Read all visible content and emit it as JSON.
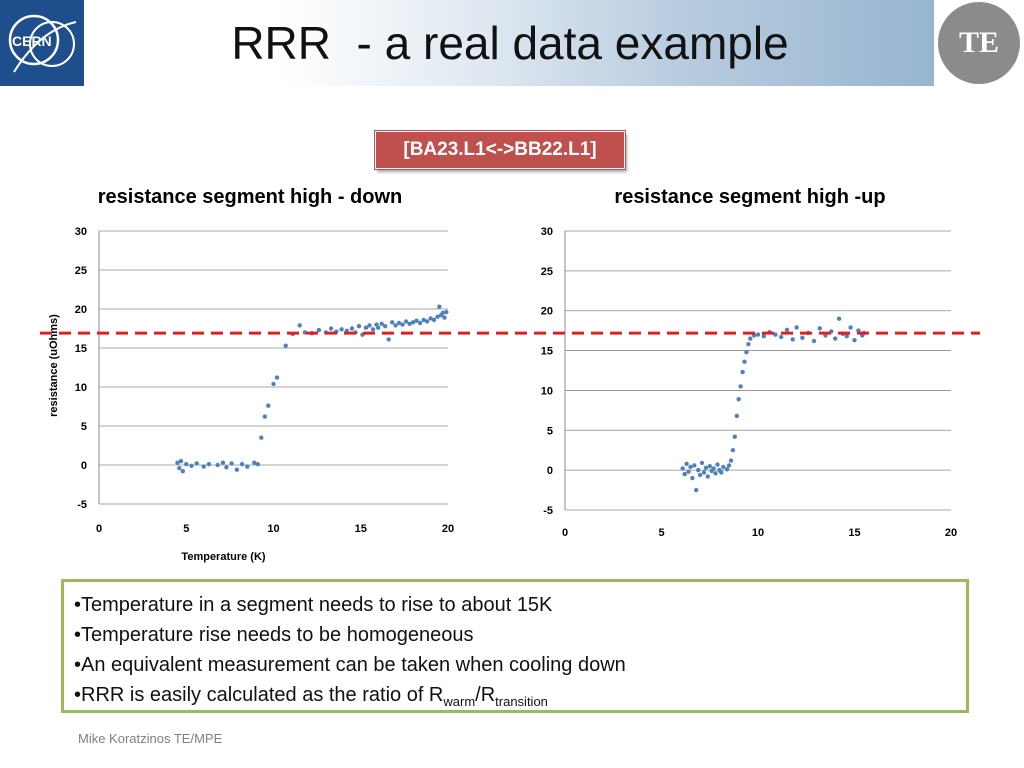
{
  "slide": {
    "title": "RRR  - a real data example",
    "tag": "[BA23.L1<->BB22.L1]",
    "te_logo_text": "TE",
    "cern_logo_text": "CERN",
    "footer": "Mike Koratzinos TE/MPE"
  },
  "bullets": [
    {
      "text": "•Temperature in a segment needs to rise to about 15K"
    },
    {
      "text": "•Temperature rise needs to be homogeneous"
    },
    {
      "text": "•An equivalent measurement can be taken when cooling down"
    },
    {
      "prefix": "•RRR is easily calculated as the ratio of R",
      "sub1": "warm",
      "mid": "/R",
      "sub2": "transition"
    }
  ],
  "colors": {
    "marker": "#4f81bd",
    "reference_line": "#e02020",
    "tag_bg": "#c0504d",
    "box_border": "#9bbb59"
  },
  "chart_data": [
    {
      "type": "scatter",
      "title": "resistance segment high - down",
      "xlabel": "Temperature (K)",
      "ylabel": "resistance (uOhms)",
      "xlim": [
        0,
        20
      ],
      "ylim": [
        -5,
        30
      ],
      "xticks": [
        0,
        5,
        10,
        15,
        20
      ],
      "yticks": [
        -5,
        0,
        5,
        10,
        15,
        20,
        25,
        30
      ],
      "grid": "horizontal",
      "reference_line_y": 16.9,
      "series": [
        {
          "points": [
            [
              4.5,
              0.3
            ],
            [
              4.6,
              -0.4
            ],
            [
              4.7,
              0.5
            ],
            [
              4.8,
              -0.8
            ],
            [
              5.0,
              0.1
            ],
            [
              5.3,
              -0.1
            ],
            [
              5.6,
              0.2
            ],
            [
              6.0,
              -0.2
            ],
            [
              6.3,
              0.1
            ],
            [
              6.8,
              0.0
            ],
            [
              7.1,
              0.3
            ],
            [
              7.3,
              -0.3
            ],
            [
              7.6,
              0.2
            ],
            [
              7.9,
              -0.6
            ],
            [
              8.2,
              0.1
            ],
            [
              8.5,
              -0.2
            ],
            [
              8.9,
              0.3
            ],
            [
              9.1,
              0.1
            ],
            [
              9.3,
              3.5
            ],
            [
              9.5,
              6.2
            ],
            [
              9.7,
              7.6
            ],
            [
              10.0,
              10.4
            ],
            [
              10.2,
              11.2
            ],
            [
              10.7,
              15.3
            ],
            [
              11.1,
              16.8
            ],
            [
              11.5,
              17.9
            ],
            [
              11.8,
              17.0
            ],
            [
              12.2,
              16.9
            ],
            [
              12.6,
              17.3
            ],
            [
              13.0,
              17.0
            ],
            [
              13.3,
              17.5
            ],
            [
              13.6,
              17.1
            ],
            [
              13.9,
              17.4
            ],
            [
              14.2,
              17.2
            ],
            [
              14.5,
              17.5
            ],
            [
              14.7,
              17.0
            ],
            [
              14.9,
              17.8
            ],
            [
              15.1,
              16.7
            ],
            [
              15.3,
              17.6
            ],
            [
              15.5,
              17.9
            ],
            [
              15.7,
              17.4
            ],
            [
              15.9,
              18.0
            ],
            [
              16.0,
              17.6
            ],
            [
              16.2,
              18.1
            ],
            [
              16.4,
              17.8
            ],
            [
              16.6,
              16.1
            ],
            [
              16.8,
              18.3
            ],
            [
              17.0,
              17.9
            ],
            [
              17.2,
              18.2
            ],
            [
              17.4,
              18.0
            ],
            [
              17.6,
              18.4
            ],
            [
              17.8,
              18.1
            ],
            [
              18.0,
              18.3
            ],
            [
              18.2,
              18.5
            ],
            [
              18.4,
              18.2
            ],
            [
              18.6,
              18.6
            ],
            [
              18.8,
              18.4
            ],
            [
              19.0,
              18.8
            ],
            [
              19.2,
              18.6
            ],
            [
              19.4,
              19.0
            ],
            [
              19.5,
              20.3
            ],
            [
              19.6,
              19.2
            ],
            [
              19.7,
              19.5
            ],
            [
              19.8,
              18.9
            ],
            [
              19.9,
              19.6
            ]
          ]
        }
      ]
    },
    {
      "type": "scatter",
      "title": "resistance segment high -up",
      "xlabel": "",
      "ylabel": "",
      "xlim": [
        0,
        20
      ],
      "ylim": [
        -5,
        30
      ],
      "xticks": [
        0,
        5,
        10,
        15,
        20
      ],
      "yticks": [
        -5,
        0,
        5,
        10,
        15,
        20,
        25,
        30
      ],
      "grid": "horizontal",
      "reference_line_y": 16.9,
      "series": [
        {
          "points": [
            [
              6.1,
              0.2
            ],
            [
              6.2,
              -0.5
            ],
            [
              6.3,
              0.8
            ],
            [
              6.4,
              -0.2
            ],
            [
              6.5,
              0.4
            ],
            [
              6.6,
              -1.0
            ],
            [
              6.7,
              0.6
            ],
            [
              6.8,
              -2.5
            ],
            [
              6.9,
              0.0
            ],
            [
              7.0,
              -0.6
            ],
            [
              7.1,
              0.9
            ],
            [
              7.2,
              -0.3
            ],
            [
              7.3,
              0.3
            ],
            [
              7.4,
              -0.8
            ],
            [
              7.5,
              0.5
            ],
            [
              7.6,
              -0.1
            ],
            [
              7.7,
              0.2
            ],
            [
              7.8,
              -0.4
            ],
            [
              7.9,
              0.7
            ],
            [
              8.0,
              0.0
            ],
            [
              8.1,
              -0.3
            ],
            [
              8.2,
              0.4
            ],
            [
              8.4,
              0.1
            ],
            [
              8.5,
              0.6
            ],
            [
              8.6,
              1.2
            ],
            [
              8.7,
              2.5
            ],
            [
              8.8,
              4.2
            ],
            [
              8.9,
              6.8
            ],
            [
              9.0,
              8.9
            ],
            [
              9.1,
              10.5
            ],
            [
              9.2,
              12.3
            ],
            [
              9.3,
              13.6
            ],
            [
              9.4,
              14.8
            ],
            [
              9.5,
              15.8
            ],
            [
              9.6,
              16.5
            ],
            [
              9.8,
              16.9
            ],
            [
              10.0,
              17.0
            ],
            [
              10.3,
              16.8
            ],
            [
              10.6,
              17.3
            ],
            [
              10.9,
              17.0
            ],
            [
              11.2,
              16.7
            ],
            [
              11.5,
              17.6
            ],
            [
              11.8,
              16.4
            ],
            [
              12.0,
              17.9
            ],
            [
              12.3,
              16.6
            ],
            [
              12.6,
              17.2
            ],
            [
              12.9,
              16.2
            ],
            [
              13.2,
              17.8
            ],
            [
              13.5,
              16.9
            ],
            [
              13.8,
              17.4
            ],
            [
              14.0,
              16.5
            ],
            [
              14.2,
              19.0
            ],
            [
              14.4,
              17.1
            ],
            [
              14.6,
              16.8
            ],
            [
              14.8,
              17.9
            ],
            [
              15.0,
              16.3
            ],
            [
              15.2,
              17.5
            ],
            [
              15.4,
              16.9
            ],
            [
              15.5,
              17.2
            ]
          ]
        }
      ]
    }
  ]
}
